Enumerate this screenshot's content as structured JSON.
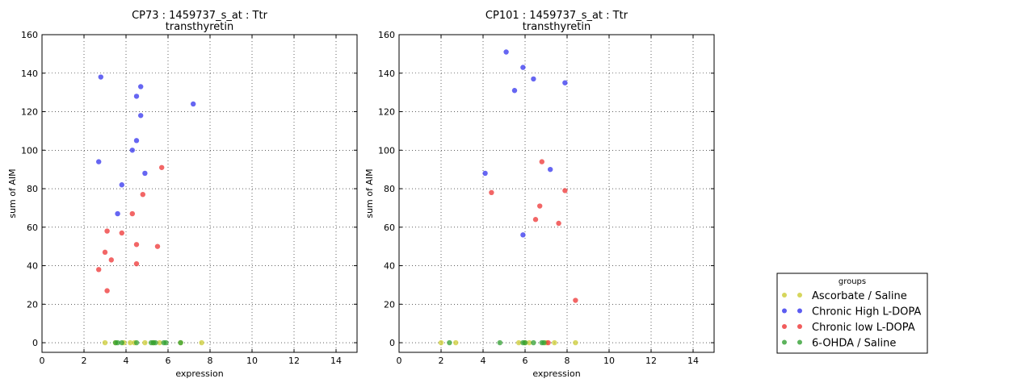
{
  "legend": {
    "title": "groups",
    "entries": [
      {
        "label": "Ascorbate / Saline",
        "color": "#cccc33"
      },
      {
        "label": "Chronic High L-DOPA",
        "color": "#3333ee"
      },
      {
        "label": "Chronic low L-DOPA",
        "color": "#ee3333"
      },
      {
        "label": "6-OHDA / Saline",
        "color": "#33a033"
      }
    ]
  },
  "chart_data": [
    {
      "type": "scatter",
      "title": "CP73 : 1459737_s_at : Ttr",
      "subtitle": "transthyretin",
      "xlabel": "expression",
      "ylabel": "sum of AIM",
      "xlim": [
        0,
        15
      ],
      "ylim": [
        -5,
        160
      ],
      "xticks": [
        0,
        2,
        4,
        6,
        8,
        10,
        12,
        14
      ],
      "yticks": [
        0,
        20,
        40,
        60,
        80,
        100,
        120,
        140,
        160
      ],
      "grid": true,
      "series": [
        {
          "name": "Ascorbate / Saline",
          "color": "#cccc33",
          "x": [
            3.0,
            3.5,
            3.9,
            4.2,
            4.4,
            4.9,
            5.3,
            5.6,
            6.6,
            7.6
          ],
          "y": [
            0,
            0,
            0,
            0,
            0,
            0,
            0,
            0,
            0,
            0
          ]
        },
        {
          "name": "Chronic High L-DOPA",
          "color": "#3333ee",
          "x": [
            2.8,
            4.7,
            4.5,
            7.2,
            4.7,
            4.3,
            4.5,
            2.7,
            4.9,
            3.8,
            3.6
          ],
          "y": [
            138,
            133,
            128,
            124,
            118,
            100,
            105,
            94,
            88,
            82,
            67
          ]
        },
        {
          "name": "Chronic low L-DOPA",
          "color": "#ee3333",
          "x": [
            5.7,
            4.8,
            4.3,
            3.1,
            3.8,
            4.5,
            5.5,
            3.0,
            3.3,
            4.5,
            2.7,
            3.1
          ],
          "y": [
            91,
            77,
            67,
            58,
            57,
            51,
            50,
            47,
            43,
            41,
            38,
            27
          ]
        },
        {
          "name": "6-OHDA / Saline",
          "color": "#33a033",
          "x": [
            3.5,
            3.6,
            3.8,
            4.5,
            5.2,
            5.3,
            5.4,
            5.8,
            5.9,
            6.6
          ],
          "y": [
            0,
            0,
            0,
            0,
            0,
            0,
            0,
            0,
            0,
            0
          ]
        }
      ]
    },
    {
      "type": "scatter",
      "title": "CP101 : 1459737_s_at : Ttr",
      "subtitle": "transthyretin",
      "xlabel": "expression",
      "ylabel": "sum of AIM",
      "xlim": [
        0,
        15
      ],
      "ylim": [
        -5,
        160
      ],
      "xticks": [
        0,
        2,
        4,
        6,
        8,
        10,
        12,
        14
      ],
      "yticks": [
        0,
        20,
        40,
        60,
        80,
        100,
        120,
        140,
        160
      ],
      "grid": true,
      "series": [
        {
          "name": "Ascorbate / Saline",
          "color": "#cccc33",
          "x": [
            2.0,
            2.7,
            5.7,
            6.0,
            6.2,
            7.0,
            7.4,
            8.4
          ],
          "y": [
            0,
            0,
            0,
            0,
            0,
            0,
            0,
            0
          ]
        },
        {
          "name": "Chronic High L-DOPA",
          "color": "#3333ee",
          "x": [
            5.1,
            5.9,
            6.4,
            5.5,
            7.9,
            4.1,
            7.2,
            5.9
          ],
          "y": [
            151,
            143,
            137,
            131,
            135,
            88,
            90,
            56
          ]
        },
        {
          "name": "Chronic low L-DOPA",
          "color": "#ee3333",
          "x": [
            6.8,
            4.4,
            7.9,
            6.7,
            6.5,
            7.6,
            8.4,
            7.1
          ],
          "y": [
            94,
            78,
            79,
            71,
            64,
            62,
            22,
            0
          ]
        },
        {
          "name": "6-OHDA / Saline",
          "color": "#33a033",
          "x": [
            2.4,
            4.8,
            5.9,
            6.0,
            6.4,
            6.8,
            6.9
          ],
          "y": [
            0,
            0,
            0,
            0,
            0,
            0,
            0
          ]
        }
      ]
    }
  ]
}
